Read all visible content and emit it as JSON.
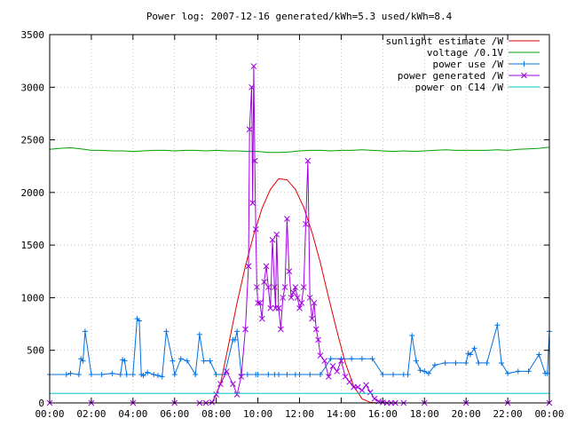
{
  "chart_data": {
    "type": "line",
    "title": "Power log: 2007-12-16 generated/kWh=5.3 used/kWh=8.4",
    "xlabel": "",
    "ylabel": "",
    "xlim": [
      0,
      24
    ],
    "ylim": [
      0,
      3500
    ],
    "grid": true,
    "legend_position": "top-right",
    "x_tick_labels": [
      "00:00",
      "02:00",
      "04:00",
      "06:00",
      "08:00",
      "10:00",
      "12:00",
      "14:00",
      "16:00",
      "18:00",
      "20:00",
      "22:00",
      "00:00"
    ],
    "y_tick_labels": [
      "0",
      "500",
      "1000",
      "1500",
      "2000",
      "2500",
      "3000",
      "3500"
    ],
    "x_ticks": [
      0,
      2,
      4,
      6,
      8,
      10,
      12,
      14,
      16,
      18,
      20,
      22,
      24
    ],
    "y_ticks": [
      0,
      500,
      1000,
      1500,
      2000,
      2500,
      3000,
      3500
    ],
    "series": [
      {
        "name": "sunlight estimate /W",
        "color": "#e00000",
        "marker": "none",
        "x": [
          7.8,
          8.2,
          8.6,
          9.0,
          9.4,
          9.8,
          10.2,
          10.6,
          11.0,
          11.4,
          11.8,
          12.2,
          12.6,
          13.0,
          13.4,
          13.8,
          14.2,
          14.6,
          15.0,
          15.4,
          15.8
        ],
        "y": [
          0,
          180,
          560,
          950,
          1300,
          1600,
          1850,
          2030,
          2130,
          2120,
          2030,
          1860,
          1620,
          1330,
          1000,
          680,
          380,
          160,
          40,
          5,
          0
        ]
      },
      {
        "name": "voltage /0.1V",
        "color": "#00a000",
        "marker": "none",
        "x": [
          0,
          0.5,
          1,
          1.5,
          2,
          2.5,
          3,
          3.5,
          4,
          4.5,
          5,
          5.5,
          6,
          6.5,
          7,
          7.5,
          8,
          8.5,
          9,
          9.5,
          10,
          10.5,
          11,
          11.5,
          12,
          12.5,
          13,
          13.5,
          14,
          14.5,
          15,
          15.5,
          16,
          16.5,
          17,
          17.5,
          18,
          18.5,
          19,
          19.5,
          20,
          20.5,
          21,
          21.5,
          22,
          22.5,
          23,
          23.5,
          24
        ],
        "y": [
          2410,
          2420,
          2425,
          2415,
          2400,
          2400,
          2395,
          2395,
          2390,
          2395,
          2400,
          2400,
          2395,
          2400,
          2400,
          2395,
          2400,
          2395,
          2395,
          2390,
          2390,
          2380,
          2380,
          2385,
          2395,
          2400,
          2400,
          2395,
          2400,
          2400,
          2405,
          2400,
          2395,
          2390,
          2395,
          2390,
          2395,
          2400,
          2405,
          2400,
          2400,
          2400,
          2400,
          2405,
          2400,
          2410,
          2415,
          2420,
          2430
        ]
      },
      {
        "name": "power use /W",
        "color": "#0070e0",
        "marker": "plus",
        "x": [
          0,
          0.8,
          1.0,
          1.4,
          1.5,
          1.6,
          1.7,
          2.0,
          2.5,
          3.0,
          3.4,
          3.5,
          3.6,
          3.7,
          4.0,
          4.2,
          4.3,
          4.4,
          4.5,
          4.7,
          5.0,
          5.2,
          5.4,
          5.6,
          5.9,
          6.0,
          6.3,
          6.6,
          7.0,
          7.2,
          7.4,
          7.7,
          8.0,
          8.4,
          8.8,
          8.9,
          9.0,
          9.2,
          9.5,
          9.9,
          10.0,
          10.5,
          10.8,
          11.0,
          11.4,
          11.8,
          12.0,
          12.5,
          13.0,
          13.5,
          14.0,
          14.5,
          15.0,
          15.5,
          16.0,
          16.5,
          17.0,
          17.2,
          17.4,
          17.6,
          17.8,
          18.0,
          18.2,
          18.5,
          19.0,
          19.5,
          20.0,
          20.1,
          20.2,
          20.4,
          20.6,
          21.0,
          21.5,
          21.7,
          22.0,
          22.5,
          23.0,
          23.5,
          23.8,
          23.9,
          24.0
        ],
        "y": [
          270,
          270,
          280,
          270,
          420,
          400,
          680,
          270,
          270,
          280,
          270,
          410,
          400,
          270,
          270,
          800,
          780,
          270,
          260,
          290,
          270,
          260,
          250,
          680,
          400,
          270,
          420,
          400,
          270,
          650,
          400,
          400,
          270,
          270,
          600,
          600,
          680,
          270,
          270,
          270,
          270,
          270,
          270,
          270,
          270,
          270,
          270,
          270,
          270,
          420,
          420,
          420,
          420,
          420,
          270,
          270,
          270,
          270,
          640,
          400,
          310,
          300,
          280,
          360,
          380,
          380,
          380,
          470,
          460,
          520,
          380,
          380,
          740,
          380,
          280,
          300,
          300,
          460,
          280,
          280,
          680
        ]
      },
      {
        "name": "power generated /W",
        "color": "#a000e0",
        "marker": "x",
        "x": [
          0,
          2,
          4,
          6,
          7.2,
          7.5,
          7.8,
          8.0,
          8.2,
          8.5,
          8.8,
          9.0,
          9.2,
          9.4,
          9.55,
          9.6,
          9.7,
          9.75,
          9.8,
          9.85,
          9.9,
          9.95,
          10.0,
          10.1,
          10.2,
          10.3,
          10.4,
          10.5,
          10.6,
          10.7,
          10.8,
          10.85,
          10.9,
          11.0,
          11.1,
          11.2,
          11.3,
          11.4,
          11.5,
          11.6,
          11.7,
          11.8,
          11.9,
          12.0,
          12.1,
          12.2,
          12.3,
          12.4,
          12.5,
          12.6,
          12.7,
          12.8,
          12.9,
          13.0,
          13.2,
          13.4,
          13.6,
          13.8,
          14.0,
          14.2,
          14.4,
          14.6,
          14.8,
          15.0,
          15.2,
          15.4,
          15.6,
          15.8,
          16.0,
          16.2,
          16.4,
          16.6,
          17,
          18,
          20,
          22,
          24
        ],
        "y": [
          0,
          0,
          0,
          0,
          0,
          0,
          5,
          80,
          180,
          300,
          180,
          80,
          250,
          700,
          1300,
          2600,
          3000,
          1900,
          3200,
          2300,
          1650,
          1100,
          950,
          950,
          800,
          1150,
          1300,
          1100,
          900,
          1550,
          1100,
          900,
          1600,
          900,
          700,
          1000,
          1100,
          1750,
          1250,
          1000,
          1050,
          1100,
          1000,
          900,
          950,
          1100,
          1700,
          2300,
          1000,
          800,
          950,
          700,
          600,
          450,
          400,
          250,
          350,
          300,
          400,
          250,
          200,
          150,
          150,
          120,
          170,
          100,
          40,
          15,
          5,
          0,
          0,
          0,
          0,
          0,
          0,
          0,
          0
        ]
      },
      {
        "name": "power on C14 /W",
        "color": "#00c8c8",
        "marker": "none",
        "x": [
          0,
          24
        ],
        "y": [
          90,
          90
        ]
      }
    ]
  }
}
